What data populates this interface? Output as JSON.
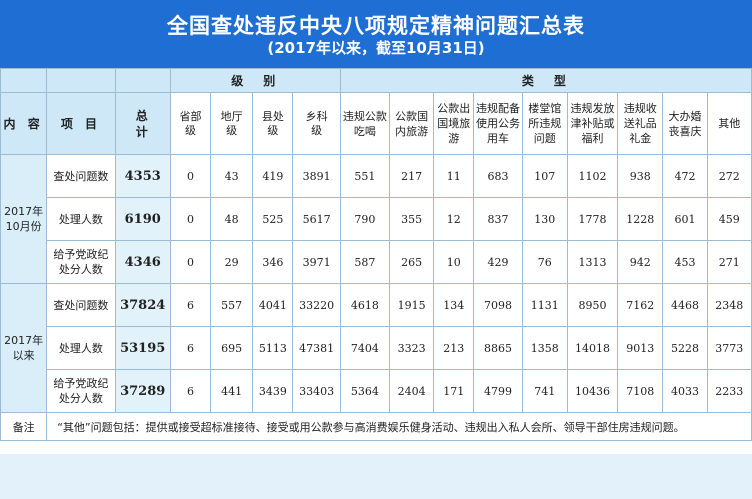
{
  "title": "全国查处违反中央八项规定精神问题汇总表",
  "subtitle": "(2017年以来，截至10月31日)",
  "headers": {
    "neirong": "内 容",
    "xiangmu": "项 目",
    "zongji": "总计",
    "jibie": "级　别",
    "leixing": "类　型",
    "levels": [
      "省部级",
      "地厅级",
      "县处级",
      "乡科级"
    ],
    "types": [
      "违规公款吃喝",
      "公款国内旅游",
      "公款出国境旅游",
      "违规配备使用公务用车",
      "楼堂馆所违规问题",
      "违规发放津补贴或福利",
      "违规收送礼品礼金",
      "大办婚丧喜庆",
      "其他"
    ]
  },
  "periods": [
    {
      "label": "2017年10月份",
      "rows": [
        {
          "item": "查处问题数",
          "total": "4353",
          "levels": [
            "0",
            "43",
            "419",
            "3891"
          ],
          "types": [
            "551",
            "217",
            "11",
            "683",
            "107",
            "1102",
            "938",
            "472",
            "272"
          ]
        },
        {
          "item": "处理人数",
          "total": "6190",
          "levels": [
            "0",
            "48",
            "525",
            "5617"
          ],
          "types": [
            "790",
            "355",
            "12",
            "837",
            "130",
            "1778",
            "1228",
            "601",
            "459"
          ]
        },
        {
          "item": "给予党政纪处分人数",
          "total": "4346",
          "levels": [
            "0",
            "29",
            "346",
            "3971"
          ],
          "types": [
            "587",
            "265",
            "10",
            "429",
            "76",
            "1313",
            "942",
            "453",
            "271"
          ]
        }
      ]
    },
    {
      "label": "2017年以来",
      "rows": [
        {
          "item": "查处问题数",
          "total": "37824",
          "levels": [
            "6",
            "557",
            "4041",
            "33220"
          ],
          "types": [
            "4618",
            "1915",
            "134",
            "7098",
            "1131",
            "8950",
            "7162",
            "4468",
            "2348"
          ]
        },
        {
          "item": "处理人数",
          "total": "53195",
          "levels": [
            "6",
            "695",
            "5113",
            "47381"
          ],
          "types": [
            "7404",
            "3323",
            "213",
            "8865",
            "1358",
            "14018",
            "9013",
            "5228",
            "3773"
          ]
        },
        {
          "item": "给予党政纪处分人数",
          "total": "37289",
          "levels": [
            "6",
            "441",
            "3439",
            "33403"
          ],
          "types": [
            "5364",
            "2404",
            "171",
            "4799",
            "741",
            "10436",
            "7108",
            "4033",
            "2233"
          ]
        }
      ]
    }
  ],
  "note": {
    "label": "备注",
    "text": "“其他”问题包括：提供或接受超标准接待、接受或用公款参与高消费娱乐健身活动、违规出入私人会所、领导干部住房违规问题。"
  },
  "colors": {
    "header_bg": "#1f6ed4",
    "header_row_bg": "#cfe8f7",
    "border": "#9bbbd6"
  }
}
